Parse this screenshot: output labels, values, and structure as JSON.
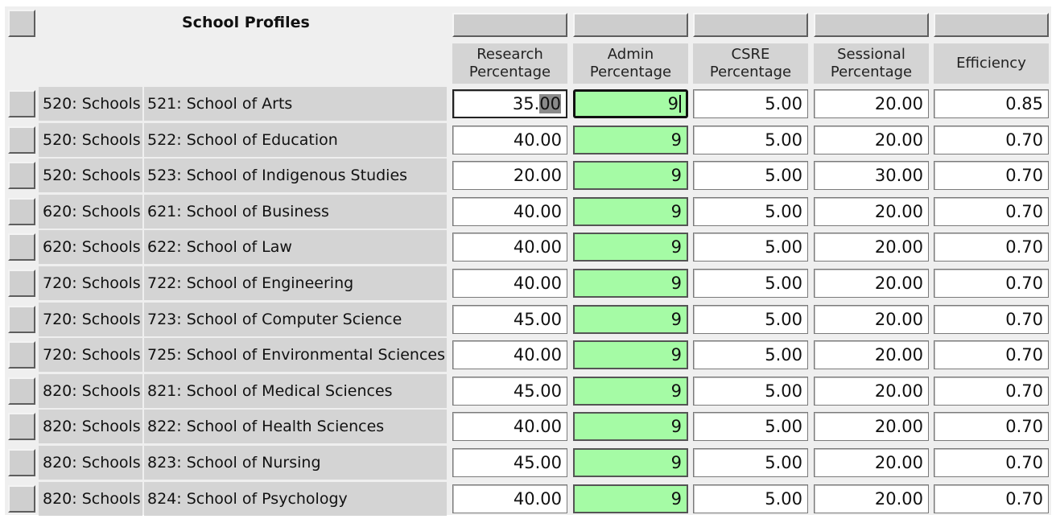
{
  "title": "School Profiles",
  "columns": {
    "research": [
      "Research",
      "Percentage"
    ],
    "admin": [
      "Admin",
      "Percentage"
    ],
    "csre": [
      "CSRE",
      "Percentage"
    ],
    "sessional": [
      "Sessional",
      "Percentage"
    ],
    "efficiency": [
      "Efficiency"
    ]
  },
  "colors": {
    "admin_field": "#a5fba5",
    "header_gray": "#d4d4d4",
    "background": "#efefef"
  },
  "focused_row": 0,
  "rows": [
    {
      "group": "520: Schools",
      "name": "521: School of Arts",
      "research": "35.00",
      "admin": "9",
      "csre": "5.00",
      "sessional": "20.00",
      "efficiency": "0.85"
    },
    {
      "group": "520: Schools",
      "name": "522: School of Education",
      "research": "40.00",
      "admin": "9",
      "csre": "5.00",
      "sessional": "20.00",
      "efficiency": "0.70"
    },
    {
      "group": "520: Schools",
      "name": "523: School of Indigenous Studies",
      "research": "20.00",
      "admin": "9",
      "csre": "5.00",
      "sessional": "30.00",
      "efficiency": "0.70"
    },
    {
      "group": "620: Schools",
      "name": "621: School of Business",
      "research": "40.00",
      "admin": "9",
      "csre": "5.00",
      "sessional": "20.00",
      "efficiency": "0.70"
    },
    {
      "group": "620: Schools",
      "name": "622: School of Law",
      "research": "40.00",
      "admin": "9",
      "csre": "5.00",
      "sessional": "20.00",
      "efficiency": "0.70"
    },
    {
      "group": "720: Schools",
      "name": "722: School of Engineering",
      "research": "40.00",
      "admin": "9",
      "csre": "5.00",
      "sessional": "20.00",
      "efficiency": "0.70"
    },
    {
      "group": "720: Schools",
      "name": "723: School of Computer Science",
      "research": "45.00",
      "admin": "9",
      "csre": "5.00",
      "sessional": "20.00",
      "efficiency": "0.70"
    },
    {
      "group": "720: Schools",
      "name": "725: School of Environmental Sciences",
      "research": "40.00",
      "admin": "9",
      "csre": "5.00",
      "sessional": "20.00",
      "efficiency": "0.70"
    },
    {
      "group": "820: Schools",
      "name": "821: School of Medical Sciences",
      "research": "45.00",
      "admin": "9",
      "csre": "5.00",
      "sessional": "20.00",
      "efficiency": "0.70"
    },
    {
      "group": "820: Schools",
      "name": "822: School of Health Sciences",
      "research": "40.00",
      "admin": "9",
      "csre": "5.00",
      "sessional": "20.00",
      "efficiency": "0.70"
    },
    {
      "group": "820: Schools",
      "name": "823: School of Nursing",
      "research": "45.00",
      "admin": "9",
      "csre": "5.00",
      "sessional": "20.00",
      "efficiency": "0.70"
    },
    {
      "group": "820: Schools",
      "name": "824: School of Psychology",
      "research": "40.00",
      "admin": "9",
      "csre": "5.00",
      "sessional": "20.00",
      "efficiency": "0.70"
    }
  ]
}
